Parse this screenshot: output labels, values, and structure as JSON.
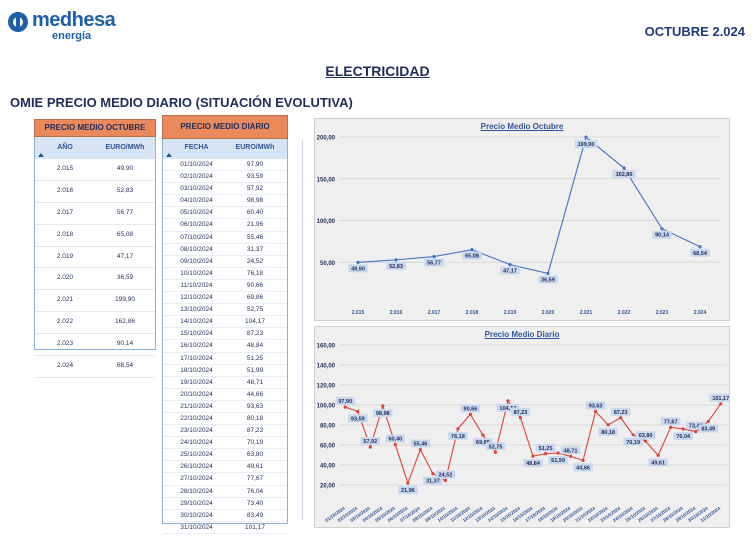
{
  "header": {
    "logo_name": "medhesa",
    "logo_sub": "energía",
    "month": "OCTUBRE 2.024",
    "section_title": "ELECTRICIDAD",
    "subtitle": "OMIE PRECIO MEDIO DIARIO (SITUACIÓN EVOLUTIVA)"
  },
  "yearly_table": {
    "title": "PRECIO MEDIO OCTUBRE",
    "col_year": "AÑO",
    "col_value": "EURO/MWh",
    "rows": [
      {
        "year": "2.015",
        "value": "49,90"
      },
      {
        "year": "2.016",
        "value": "52,83"
      },
      {
        "year": "2.017",
        "value": "56,77"
      },
      {
        "year": "2.018",
        "value": "65,08"
      },
      {
        "year": "2.019",
        "value": "47,17"
      },
      {
        "year": "2.020",
        "value": "36,59"
      },
      {
        "year": "2.021",
        "value": "199,90"
      },
      {
        "year": "2.022",
        "value": "162,86"
      },
      {
        "year": "2.023",
        "value": "90,14"
      },
      {
        "year": "2.024",
        "value": "68,54"
      }
    ]
  },
  "daily_table": {
    "title": "PRECIO MEDIO DIARIO",
    "col_date": "FECHA",
    "col_value": "EURO/MWh",
    "rows": [
      {
        "date": "01/10/2024",
        "value": "97,90"
      },
      {
        "date": "02/10/2024",
        "value": "93,59"
      },
      {
        "date": "03/10/2024",
        "value": "57,92"
      },
      {
        "date": "04/10/2024",
        "value": "98,98"
      },
      {
        "date": "05/10/2024",
        "value": "60,40"
      },
      {
        "date": "06/10/2024",
        "value": "21,96"
      },
      {
        "date": "07/10/2024",
        "value": "55,46"
      },
      {
        "date": "08/10/2024",
        "value": "31,37"
      },
      {
        "date": "09/10/2024",
        "value": "24,52"
      },
      {
        "date": "10/10/2024",
        "value": "76,18"
      },
      {
        "date": "11/10/2024",
        "value": "90,66"
      },
      {
        "date": "12/10/2024",
        "value": "69,86"
      },
      {
        "date": "13/10/2024",
        "value": "52,75"
      },
      {
        "date": "14/10/2024",
        "value": "104,17"
      },
      {
        "date": "15/10/2024",
        "value": "87,23"
      },
      {
        "date": "16/10/2024",
        "value": "48,84"
      },
      {
        "date": "17/10/2024",
        "value": "51,25"
      },
      {
        "date": "18/10/2024",
        "value": "51,99"
      },
      {
        "date": "19/10/2024",
        "value": "48,71"
      },
      {
        "date": "20/10/2024",
        "value": "44,66"
      },
      {
        "date": "21/10/2024",
        "value": "93,63"
      },
      {
        "date": "22/10/2024",
        "value": "80,18"
      },
      {
        "date": "23/10/2024",
        "value": "87,23"
      },
      {
        "date": "24/10/2024",
        "value": "70,19"
      },
      {
        "date": "25/10/2024",
        "value": "63,80"
      },
      {
        "date": "26/10/2024",
        "value": "49,61"
      },
      {
        "date": "27/10/2024",
        "value": "77,67"
      },
      {
        "date": "28/10/2024",
        "value": "76,04"
      },
      {
        "date": "29/10/2024",
        "value": "73,40"
      },
      {
        "date": "30/10/2024",
        "value": "83,49"
      },
      {
        "date": "31/10/2024",
        "value": "101,17"
      }
    ]
  },
  "chart_data": [
    {
      "type": "line",
      "title": "Precio Medio Octubre",
      "categories": [
        "2.015",
        "2.016",
        "2.017",
        "2.018",
        "2.019",
        "2.020",
        "2.021",
        "2.022",
        "2.023",
        "2.024"
      ],
      "values": [
        49.9,
        52.83,
        56.77,
        65.08,
        47.17,
        36.59,
        199.9,
        162.86,
        90.14,
        68.54
      ],
      "labels": [
        "49,90",
        "52,83",
        "56,77",
        "65,08",
        "47,17",
        "36,59",
        "199,90",
        "162,86",
        "90,14",
        "68,54"
      ],
      "yticks": [
        "200,00",
        "150,00",
        "100,00",
        "50,00"
      ],
      "ylim": [
        0,
        200
      ],
      "line_color": "#4472c4",
      "grid": true
    },
    {
      "type": "line",
      "title": "Precio Medio Diario",
      "categories": [
        "01/10/2024",
        "02/10/2024",
        "03/10/2024",
        "04/10/2024",
        "05/10/2024",
        "06/10/2024",
        "07/10/2024",
        "08/10/2024",
        "09/10/2024",
        "10/10/2024",
        "11/10/2024",
        "12/10/2024",
        "13/10/2024",
        "14/10/2024",
        "15/10/2024",
        "16/10/2024",
        "17/10/2024",
        "18/10/2024",
        "19/10/2024",
        "20/10/2024",
        "21/10/2024",
        "22/10/2024",
        "23/10/2024",
        "24/10/2024",
        "25/10/2024",
        "26/10/2024",
        "27/10/2024",
        "28/10/2024",
        "29/10/2024",
        "30/10/2024",
        "31/10/2024"
      ],
      "values": [
        97.9,
        93.59,
        57.92,
        98.98,
        60.4,
        21.96,
        55.46,
        31.37,
        24.52,
        76.18,
        90.66,
        69.86,
        52.75,
        104.17,
        87.23,
        48.84,
        51.25,
        51.99,
        48.71,
        44.66,
        93.63,
        80.18,
        87.23,
        70.19,
        63.8,
        49.61,
        77.67,
        76.04,
        73.4,
        83.49,
        101.17
      ],
      "labels": [
        "97,90",
        "93,59",
        "57,92",
        "98,98",
        "60,40",
        "21,96",
        "55,46",
        "31,37",
        "24,52",
        "76,18",
        "90,66",
        "69,86",
        "52,75",
        "104,17",
        "87,23",
        "48,84",
        "51,25",
        "51,99",
        "48,71",
        "44,66",
        "93,63",
        "80,18",
        "87,23",
        "70,19",
        "63,80",
        "49,61",
        "77,67",
        "76,04",
        "73,40",
        "83,49",
        "101,17"
      ],
      "yticks": [
        "160,00",
        "140,00",
        "120,00",
        "100,00",
        "80,00",
        "60,00",
        "40,00",
        "20,00"
      ],
      "ylim": [
        0,
        160
      ],
      "line_color": "#e0403a",
      "grid": true
    }
  ]
}
